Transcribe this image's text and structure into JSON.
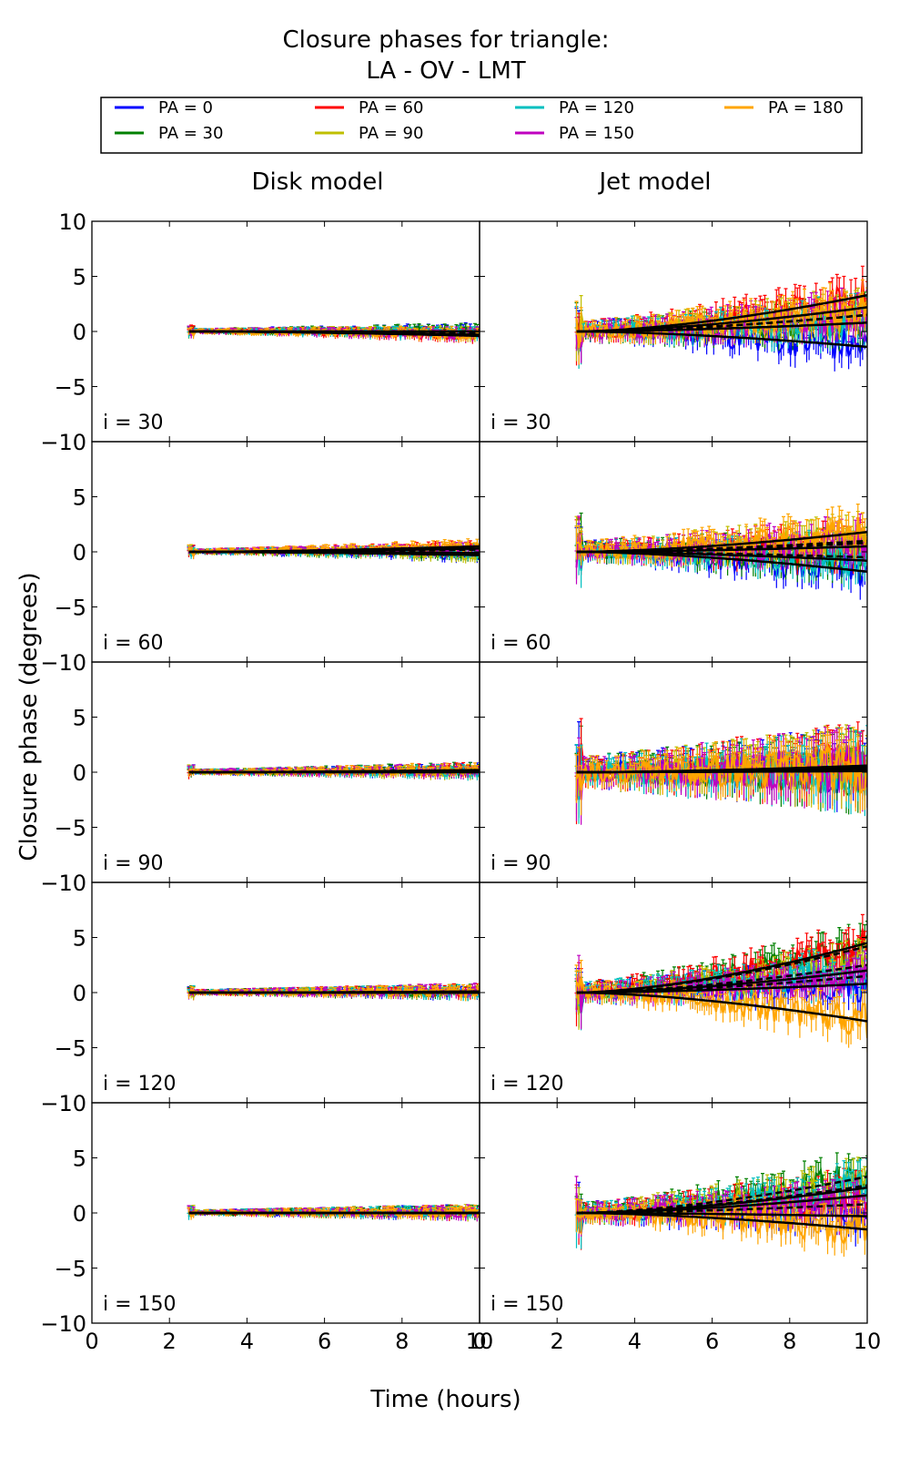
{
  "chart_data": {
    "type": "line",
    "title_line1": "Closure phases for triangle:",
    "title_line2": "LA - OV - LMT",
    "columns": [
      "Disk model",
      "Jet model"
    ],
    "xlabel": "Time (hours)",
    "ylabel": "Closure phase (degrees)",
    "xlim": [
      0,
      10
    ],
    "ylim": [
      -10,
      10
    ],
    "xticks": [
      0,
      2,
      4,
      6,
      8,
      10
    ],
    "yticks": [
      -10,
      -5,
      0,
      5,
      10
    ],
    "legend_placement": "top",
    "series": [
      {
        "name": "PA = 0",
        "color": "#0000ff"
      },
      {
        "name": "PA = 30",
        "color": "#008000"
      },
      {
        "name": "PA = 60",
        "color": "#ff0000"
      },
      {
        "name": "PA = 90",
        "color": "#bfbf00"
      },
      {
        "name": "PA = 120",
        "color": "#00bfbf"
      },
      {
        "name": "PA = 150",
        "color": "#bf00bf"
      },
      {
        "name": "PA = 180",
        "color": "#ffa500"
      }
    ],
    "time_start": 2.5,
    "time_end": 10,
    "panels": [
      {
        "label": "i = 30",
        "disk_end": [
          0,
          0,
          -0.4,
          -0.2,
          -0.3,
          -0.3,
          -0.3
        ],
        "jet_end": [
          -1.4,
          0.8,
          3.3,
          1.5,
          0.8,
          1.5,
          2.2
        ]
      },
      {
        "label": "i = 60",
        "disk_end": [
          -0.3,
          -0.2,
          0.3,
          -0.3,
          -0.1,
          0.2,
          0.5
        ],
        "jet_end": [
          -1.8,
          -0.5,
          0.5,
          1.0,
          -0.8,
          0.8,
          1.8
        ]
      },
      {
        "label": "i = 90",
        "disk_end": [
          0.1,
          0.2,
          0.1,
          0,
          0,
          0.1,
          0.2
        ],
        "jet_end": [
          0.3,
          0.2,
          0.6,
          0.5,
          0.1,
          0.4,
          0.4
        ]
      },
      {
        "label": "i = 120",
        "disk_end": [
          0,
          0,
          0.1,
          0,
          0,
          0.1,
          0
        ],
        "jet_end": [
          0.8,
          4.2,
          4.5,
          2.5,
          2.0,
          1.5,
          -2.6
        ]
      },
      {
        "label": "i = 150",
        "disk_end": [
          0,
          0,
          0,
          0,
          0,
          0,
          0
        ],
        "jet_end": [
          -0.3,
          3.3,
          1.6,
          2.5,
          2.3,
          0.8,
          -1.5
        ]
      }
    ]
  }
}
